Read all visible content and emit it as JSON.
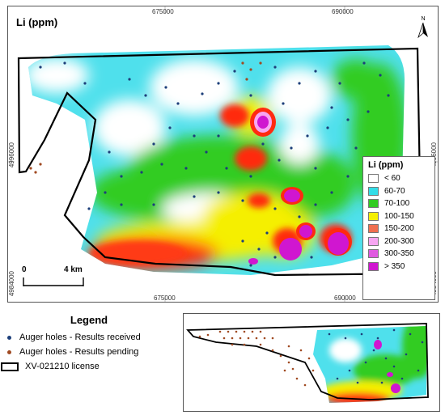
{
  "map": {
    "title": "Li (ppm)",
    "north_label": "N",
    "easting_ticks": [
      "675000",
      "690000"
    ],
    "northing_ticks": [
      "4996000",
      "4984000"
    ],
    "scale": {
      "start": "0",
      "end": "4 km"
    }
  },
  "class_legend": {
    "title": "Li (ppm)",
    "classes": [
      {
        "label": "< 60",
        "color": "#ffffff"
      },
      {
        "label": "60-70",
        "color": "#33dde8"
      },
      {
        "label": "70-100",
        "color": "#33cc22"
      },
      {
        "label": "100-150",
        "color": "#f5ef00"
      },
      {
        "label": "150-200",
        "color": "#f07050"
      },
      {
        "label": "200-300",
        "color": "#f7a6f2"
      },
      {
        "label": "300-350",
        "color": "#e05ae0"
      },
      {
        "label": "> 350",
        "color": "#d016d0"
      }
    ]
  },
  "legend": {
    "title": "Legend",
    "items": [
      {
        "label": "Auger holes - Results received",
        "color": "#1d3f7a"
      },
      {
        "label": "Auger holes - Results pending",
        "color": "#a04a22"
      },
      {
        "label": "XV-021210 license"
      }
    ]
  }
}
